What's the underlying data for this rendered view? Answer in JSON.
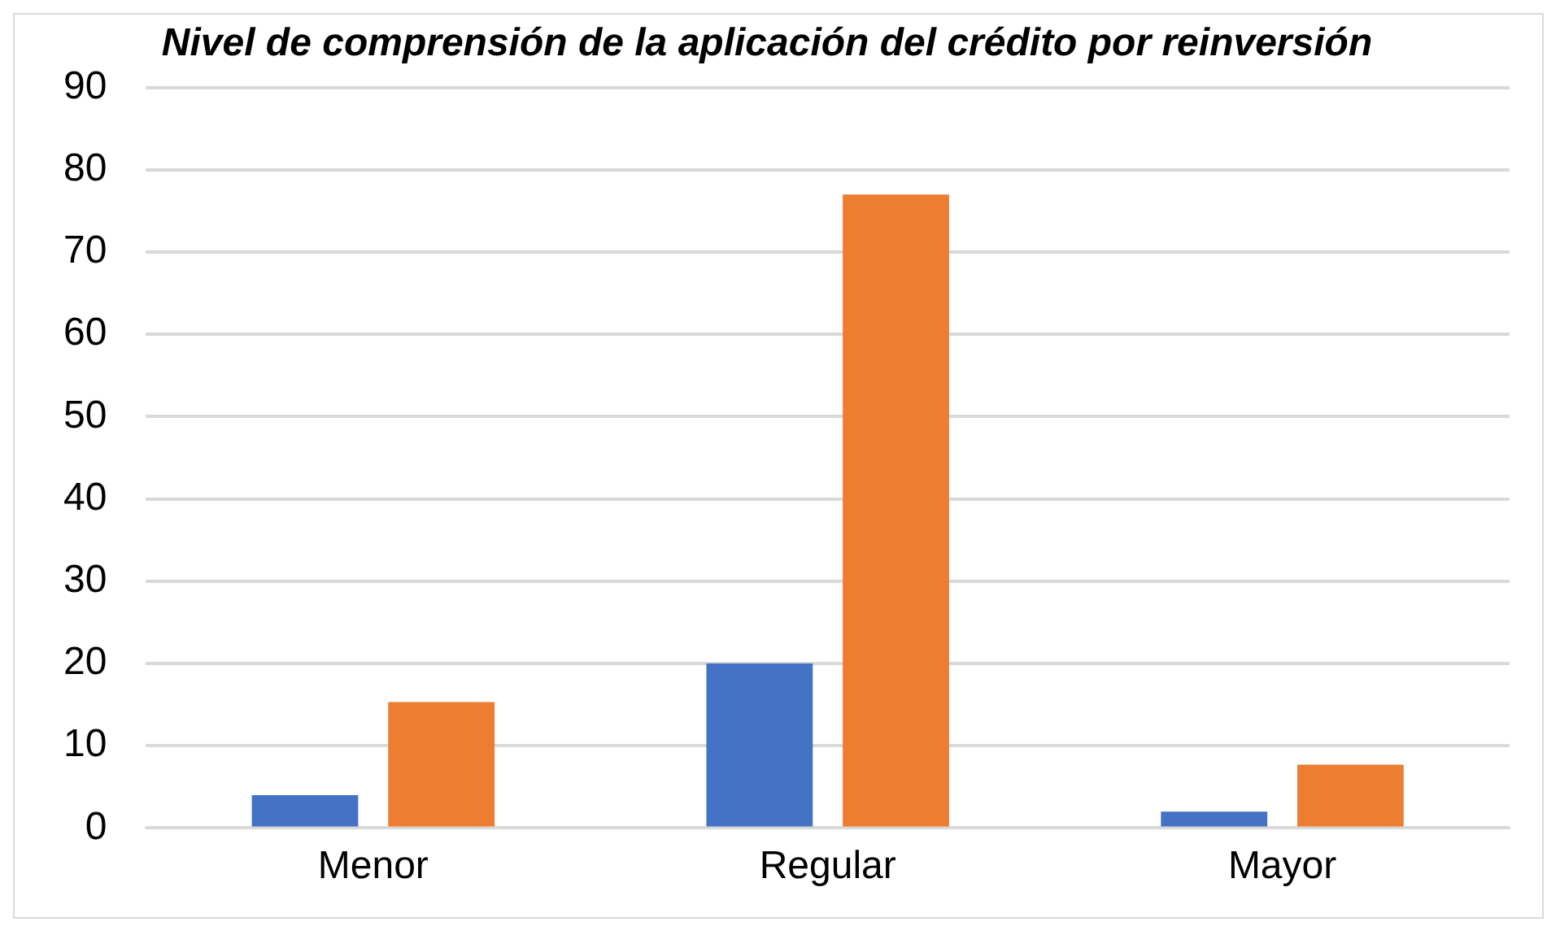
{
  "chart_data": {
    "type": "bar",
    "title": "Nivel de comprensión de la aplicación del crédito por reinversión",
    "categories": [
      "Menor",
      "Regular",
      "Mayor"
    ],
    "series": [
      {
        "color": "#4472c4",
        "values": [
          4,
          20,
          2
        ]
      },
      {
        "color": "#ed7d31",
        "values": [
          15.3,
          77,
          7.7
        ]
      }
    ],
    "ylim": [
      0,
      90
    ],
    "yticks": [
      0,
      10,
      20,
      30,
      40,
      50,
      60,
      70,
      80,
      90
    ],
    "grid": "y",
    "legend": false
  }
}
